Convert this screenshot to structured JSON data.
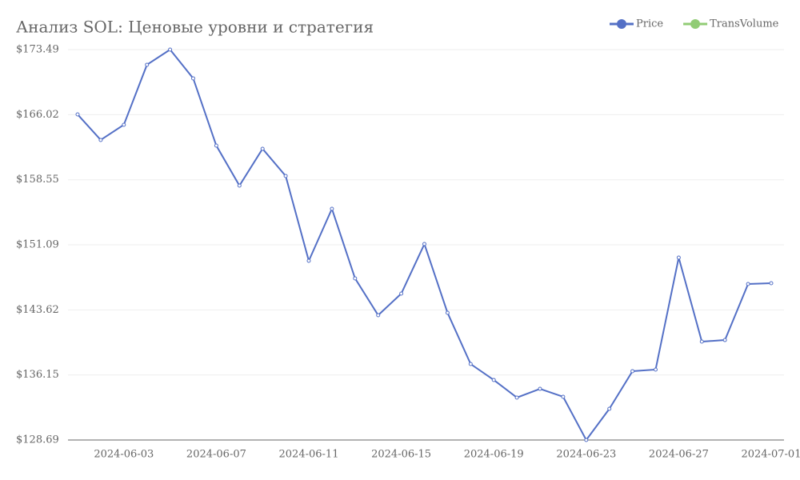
{
  "chart_data": {
    "type": "line",
    "title": "Анализ SOL: Ценовые уровни и стратегия",
    "categories": [
      null,
      null,
      "2024-06-03",
      null,
      null,
      null,
      "2024-06-07",
      null,
      null,
      null,
      "2024-06-11",
      null,
      null,
      null,
      "2024-06-15",
      null,
      null,
      null,
      "2024-06-19",
      null,
      null,
      null,
      "2024-06-23",
      null,
      null,
      null,
      "2024-06-27",
      null,
      null,
      null,
      "2024-07-01"
    ],
    "series": [
      {
        "name": "Price",
        "color": "#5470c6",
        "values": [
          166.05,
          163.12,
          164.86,
          171.75,
          173.49,
          170.19,
          162.47,
          157.88,
          162.11,
          158.99,
          149.25,
          155.22,
          147.24,
          143.01,
          145.49,
          151.18,
          143.29,
          137.41,
          135.58,
          133.56,
          134.56,
          133.65,
          128.69,
          132.27,
          136.59,
          136.77,
          149.62,
          139.98,
          140.16,
          146.59,
          146.68
        ]
      },
      {
        "name": "TransVolume",
        "color": "#91cc75",
        "values": [
          null,
          null,
          null,
          null,
          null,
          null,
          null,
          null,
          null,
          null,
          null,
          null,
          null,
          null,
          null,
          null,
          null,
          null,
          null,
          null,
          null,
          null,
          null,
          null,
          null,
          null,
          null,
          null,
          null,
          null,
          null
        ]
      }
    ],
    "ylim": [
      128.69,
      173.49
    ],
    "yticks": [
      {
        "value": 128.69,
        "label": "$128.69"
      },
      {
        "value": 136.15,
        "label": "$136.15"
      },
      {
        "value": 143.62,
        "label": "$143.62"
      },
      {
        "value": 151.09,
        "label": "$151.09"
      },
      {
        "value": 158.55,
        "label": "$158.55"
      },
      {
        "value": 166.02,
        "label": "$166.02"
      },
      {
        "value": 173.49,
        "label": "$173.49"
      }
    ],
    "grid": true,
    "legend": "top-right"
  }
}
